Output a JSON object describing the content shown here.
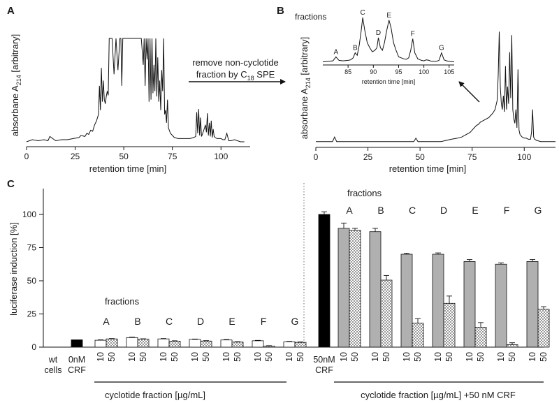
{
  "panels": {
    "a": {
      "letter": "A"
    },
    "b": {
      "letter": "B"
    },
    "c": {
      "letter": "C"
    }
  },
  "annotation": {
    "line1": "remove non-cyclotide",
    "line2_pre": "fraction by C",
    "line2_sub": "18",
    "line2_post": " SPE"
  },
  "colors": {
    "black": "#000000",
    "grey": "#b0b0b0",
    "white": "#ffffff",
    "dots": "#555555"
  },
  "chart_data": [
    {
      "type": "line",
      "id": "A",
      "xlabel": "retention time [min]",
      "ylabel_pre": "absorbane A",
      "ylabel_sub": "214",
      "ylabel_post": " [arbitrary]",
      "xlim": [
        0,
        115
      ],
      "xticks": [
        "0",
        "25",
        "50",
        "75",
        "100"
      ],
      "x_ticks_values": [
        0,
        25,
        50,
        75,
        100
      ],
      "ylim": [
        0,
        1
      ],
      "x": [
        0,
        3,
        6,
        9,
        11,
        12,
        15,
        18,
        21,
        24,
        27,
        28,
        30,
        31,
        32,
        33,
        34,
        35,
        36,
        37,
        37.5,
        38,
        38.5,
        39,
        39.5,
        40,
        40.5,
        41,
        41.5,
        42,
        42.5,
        43,
        44,
        45,
        46,
        47,
        48,
        48.5,
        49,
        49.5,
        50,
        51,
        52,
        53,
        54,
        55,
        56,
        57,
        58,
        59,
        60,
        60.5,
        61,
        61.5,
        62,
        62.5,
        63,
        63.5,
        64,
        64.5,
        65,
        65.5,
        66,
        66.5,
        67,
        67.5,
        68,
        68.5,
        69,
        69.5,
        70,
        70.5,
        71,
        71.5,
        72,
        72.5,
        73,
        74,
        75,
        76,
        78,
        80,
        82,
        84,
        86,
        87,
        87.5,
        88,
        88.5,
        89,
        89.5,
        90,
        91,
        92,
        92.5,
        93,
        93.5,
        94,
        94.5,
        95,
        95.5,
        96,
        96.5,
        97,
        98,
        99,
        100,
        101,
        102,
        103,
        104,
        105,
        107,
        110,
        112
      ],
      "y": [
        0.02,
        0.04,
        0.03,
        0.04,
        0.03,
        0.07,
        0.03,
        0.04,
        0.04,
        0.05,
        0.06,
        0.08,
        0.07,
        0.1,
        0.09,
        0.13,
        0.12,
        0.18,
        0.22,
        0.28,
        0.55,
        0.32,
        0.72,
        0.4,
        0.6,
        0.42,
        0.38,
        0.45,
        0.5,
        0.46,
        1.0,
        1.0,
        1.0,
        0.66,
        1.0,
        0.7,
        1.0,
        1.0,
        0.55,
        1.0,
        1.0,
        1.0,
        1.0,
        1.0,
        1.0,
        1.0,
        1.0,
        1.0,
        1.0,
        1.0,
        0.75,
        1.0,
        0.55,
        1.0,
        0.8,
        1.0,
        0.4,
        1.0,
        0.42,
        1.0,
        0.48,
        0.75,
        0.5,
        1.0,
        0.45,
        0.82,
        0.4,
        0.6,
        0.32,
        0.7,
        0.5,
        1.0,
        0.28,
        0.32,
        0.2,
        0.42,
        0.15,
        0.1,
        0.08,
        0.06,
        0.05,
        0.05,
        0.05,
        0.05,
        0.06,
        0.07,
        0.3,
        0.1,
        0.33,
        0.08,
        0.25,
        0.07,
        0.12,
        0.18,
        0.11,
        0.29,
        0.08,
        0.2,
        0.07,
        0.22,
        0.06,
        0.14,
        0.07,
        0.06,
        0.05,
        0.05,
        0.05,
        0.04,
        0.04,
        0.1,
        0.03,
        0.03,
        0.04,
        0.02,
        0.02
      ]
    },
    {
      "type": "line",
      "id": "B",
      "xlabel": "retention time [min]",
      "ylabel_pre": "absorbane A",
      "ylabel_sub": "214",
      "ylabel_post": " [arbitrary]",
      "xlim": [
        0,
        115
      ],
      "xticks": [
        "0",
        "25",
        "50",
        "75",
        "100"
      ],
      "x_ticks_values": [
        0,
        25,
        50,
        75,
        100
      ],
      "ylim": [
        0,
        1
      ],
      "x": [
        0,
        3,
        6,
        8,
        9,
        10,
        12,
        15,
        20,
        25,
        30,
        35,
        40,
        45,
        47,
        48,
        49,
        50,
        55,
        60,
        65,
        68,
        70,
        72,
        74,
        75,
        76,
        77,
        78,
        79,
        80,
        81,
        82,
        83,
        84,
        85,
        86,
        87,
        87.5,
        88,
        88.5,
        89,
        89.5,
        90,
        90.5,
        91,
        91.5,
        92,
        92.5,
        93,
        93.5,
        94,
        94.5,
        95,
        95.5,
        96,
        96.5,
        97,
        97.5,
        98,
        99,
        100,
        101,
        102,
        103,
        103.5,
        104,
        104.5,
        105,
        106,
        108,
        110,
        112,
        115
      ],
      "y": [
        0.02,
        0.02,
        0.02,
        0.02,
        0.06,
        0.02,
        0.02,
        0.02,
        0.02,
        0.02,
        0.02,
        0.02,
        0.02,
        0.02,
        0.02,
        0.05,
        0.02,
        0.02,
        0.02,
        0.02,
        0.04,
        0.05,
        0.06,
        0.08,
        0.1,
        0.12,
        0.14,
        0.16,
        0.17,
        0.19,
        0.2,
        0.21,
        0.22,
        0.23,
        0.25,
        0.27,
        0.3,
        0.38,
        0.6,
        0.98,
        0.5,
        0.35,
        0.3,
        0.42,
        0.28,
        0.68,
        0.3,
        0.5,
        0.35,
        0.8,
        0.4,
        0.95,
        0.3,
        0.22,
        0.18,
        0.3,
        0.14,
        0.65,
        0.12,
        0.08,
        0.06,
        0.05,
        0.05,
        0.04,
        0.04,
        0.1,
        0.3,
        0.06,
        0.04,
        0.03,
        0.02,
        0.02,
        0.02,
        0.02
      ]
    },
    {
      "type": "line",
      "id": "B-inset",
      "title": "fractions",
      "xlabel": "retention time [min]",
      "xlim": [
        80,
        106
      ],
      "xticks": [
        "85",
        "90",
        "95",
        "100",
        "105"
      ],
      "x_ticks_values": [
        85,
        90,
        95,
        100,
        105
      ],
      "ylim": [
        0,
        1
      ],
      "peak_labels": [
        {
          "label": "A",
          "x": 82.6,
          "y": 0.12
        },
        {
          "label": "B",
          "x": 86.4,
          "y": 0.2
        },
        {
          "label": "C",
          "x": 87.9,
          "y": 0.9
        },
        {
          "label": "D",
          "x": 91.0,
          "y": 0.5
        },
        {
          "label": "E",
          "x": 93.1,
          "y": 0.85
        },
        {
          "label": "F",
          "x": 97.8,
          "y": 0.48
        },
        {
          "label": "G",
          "x": 103.5,
          "y": 0.2
        }
      ],
      "x": [
        80,
        81,
        82,
        82.6,
        83.2,
        84,
        85,
        85.5,
        86,
        86.4,
        86.8,
        87.2,
        87.6,
        87.9,
        88.3,
        88.8,
        89.3,
        89.8,
        90.3,
        90.7,
        91.0,
        91.4,
        91.8,
        92.2,
        92.6,
        93.1,
        93.5,
        94.0,
        94.5,
        95.0,
        95.5,
        96,
        96.5,
        97,
        97.4,
        97.8,
        98.2,
        98.8,
        99.5,
        100,
        100.5,
        101,
        101.5,
        102,
        102.5,
        103,
        103.5,
        104,
        104.5,
        105,
        106
      ],
      "y": [
        0.02,
        0.03,
        0.04,
        0.12,
        0.05,
        0.04,
        0.05,
        0.06,
        0.1,
        0.2,
        0.15,
        0.35,
        0.65,
        0.9,
        0.65,
        0.4,
        0.3,
        0.22,
        0.25,
        0.3,
        0.5,
        0.3,
        0.25,
        0.4,
        0.62,
        0.85,
        0.7,
        0.4,
        0.25,
        0.12,
        0.1,
        0.08,
        0.07,
        0.1,
        0.25,
        0.48,
        0.2,
        0.08,
        0.05,
        0.04,
        0.06,
        0.05,
        0.03,
        0.03,
        0.03,
        0.05,
        0.2,
        0.06,
        0.04,
        0.03,
        0.02
      ]
    },
    {
      "type": "bar",
      "id": "C",
      "ylabel": "luciferase induction [%]",
      "ylim": [
        0,
        120
      ],
      "yticks": [
        "0",
        "25",
        "50",
        "75",
        "100"
      ],
      "y_ticks_values": [
        0,
        25,
        50,
        75,
        100
      ],
      "fractions_title": "fractions",
      "controls_left": [
        {
          "name": "wt cells",
          "lines": [
            "wt",
            "cells"
          ],
          "value": 0,
          "err": 0,
          "fill": "none"
        },
        {
          "name": "0nM CRF",
          "lines": [
            "0nM",
            "CRF"
          ],
          "value": 5.5,
          "err": 0,
          "fill": "black"
        }
      ],
      "controls_right": [
        {
          "name": "50nM CRF",
          "lines": [
            "50nM",
            "CRF"
          ],
          "value": 100,
          "err": 2,
          "fill": "black"
        }
      ],
      "fractions": [
        "A",
        "B",
        "C",
        "D",
        "E",
        "F",
        "G"
      ],
      "doses": [
        "10",
        "50"
      ],
      "series": [
        {
          "name": "cyclotide fraction [µg/mL] 10",
          "values": [
            5.2,
            7.2,
            6.2,
            5.8,
            5.4,
            4.8,
            4.0
          ],
          "err": [
            0.3,
            0.3,
            0.3,
            0.3,
            0.3,
            0.3,
            0.3
          ],
          "fill": "white"
        },
        {
          "name": "cyclotide fraction [µg/mL] 50",
          "values": [
            6.2,
            6.0,
            4.5,
            4.6,
            3.8,
            0.8,
            3.6
          ],
          "err": [
            0.3,
            0.3,
            0.3,
            0.3,
            0.3,
            0.3,
            0.3
          ],
          "fill": "dots"
        },
        {
          "name": "cyclotide fraction [µg/mL] +50 nM CRF 10",
          "values": [
            89.5,
            87.0,
            70.0,
            70.0,
            64.5,
            62.5,
            64.5
          ],
          "err": [
            4.0,
            2.5,
            0.8,
            1.0,
            1.5,
            1.0,
            1.5
          ],
          "fill": "grey"
        },
        {
          "name": "cyclotide fraction [µg/mL] +50 nM CRF 50",
          "values": [
            88.0,
            50.5,
            18.0,
            33.0,
            15.0,
            1.8,
            28.5
          ],
          "err": [
            1.5,
            3.5,
            3.5,
            5.5,
            3.5,
            1.5,
            2.0
          ],
          "fill": "dots"
        }
      ],
      "bracket_left_label": "cyclotide fraction [µg/mL]",
      "bracket_right_label": "cyclotide fraction [µg/mL] +50 nM CRF"
    }
  ]
}
